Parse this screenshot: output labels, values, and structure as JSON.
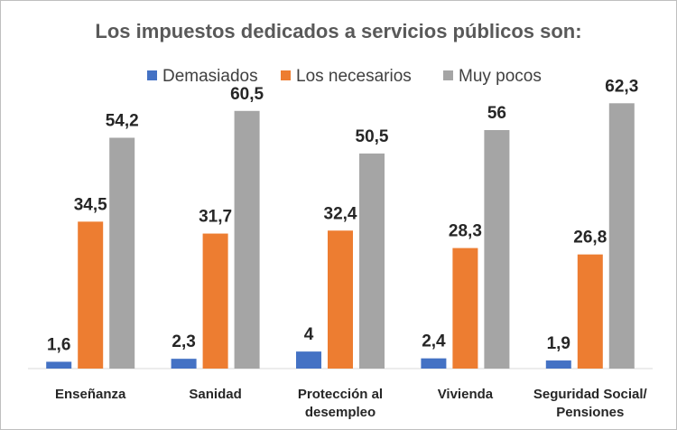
{
  "chart_data": {
    "type": "bar",
    "title": "Los impuestos dedicados a servicios públicos son:",
    "categories": [
      [
        "Enseñanza"
      ],
      [
        "Sanidad"
      ],
      [
        "Protección al",
        "desempleo"
      ],
      [
        "Vivienda"
      ],
      [
        "Seguridad Social/",
        "Pensiones"
      ]
    ],
    "series": [
      {
        "name": "Demasiados",
        "color": "#4472c4",
        "values": [
          1.6,
          2.3,
          4,
          2.4,
          1.9
        ],
        "labels": [
          "1,6",
          "2,3",
          "4",
          "2,4",
          "1,9"
        ]
      },
      {
        "name": "Los necesarios",
        "color": "#ed7d31",
        "values": [
          34.5,
          31.7,
          32.4,
          28.3,
          26.8
        ],
        "labels": [
          "34,5",
          "31,7",
          "32,4",
          "28,3",
          "26,8"
        ]
      },
      {
        "name": "Muy pocos",
        "color": "#a5a5a5",
        "values": [
          54.2,
          60.5,
          50.5,
          56,
          62.3
        ],
        "labels": [
          "54,2",
          "60,5",
          "50,5",
          "56",
          "62,3"
        ]
      }
    ],
    "ylim": [
      0,
      70
    ],
    "grid": false,
    "legend": "top"
  }
}
